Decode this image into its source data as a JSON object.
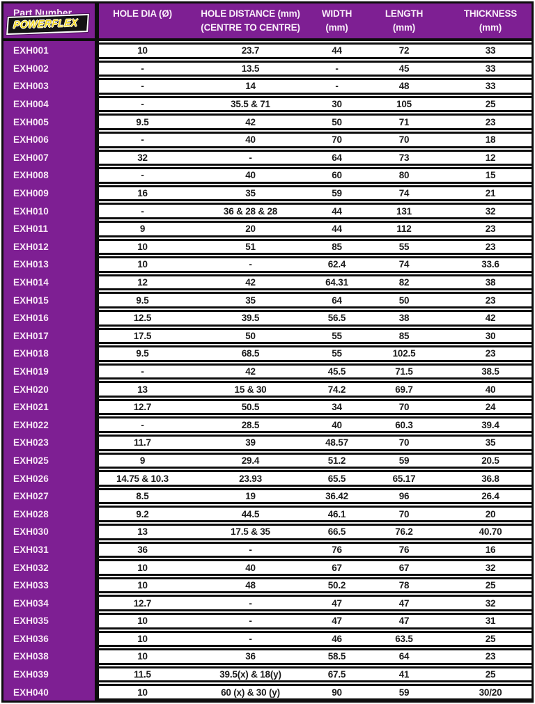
{
  "colors": {
    "accent_purple": "#7e1f93",
    "border_black": "#0d0d0d",
    "logo_yellow": "#f2d723",
    "header_text": "#f9eef9",
    "value_text": "#1b1b1b"
  },
  "header": {
    "part_number_label": "Part Number",
    "logo_text": "POWERFLEX",
    "columns": [
      {
        "line1": "HOLE DIA (Ø)",
        "line2": ""
      },
      {
        "line1": "HOLE DISTANCE (mm)",
        "line2": "(CENTRE TO CENTRE)"
      },
      {
        "line1": "WIDTH",
        "line2": "(mm)"
      },
      {
        "line1": "LENGTH",
        "line2": "(mm)"
      },
      {
        "line1": "THICKNESS",
        "line2": "(mm)"
      }
    ]
  },
  "rows": [
    {
      "part": "EXH001",
      "hole_dia": "10",
      "hole_distance": "23.7",
      "width": "44",
      "length": "72",
      "thickness": "33"
    },
    {
      "part": "EXH002",
      "hole_dia": "-",
      "hole_distance": "13.5",
      "width": "-",
      "length": "45",
      "thickness": "33"
    },
    {
      "part": "EXH003",
      "hole_dia": "-",
      "hole_distance": "14",
      "width": "-",
      "length": "48",
      "thickness": "33"
    },
    {
      "part": "EXH004",
      "hole_dia": "-",
      "hole_distance": "35.5 & 71",
      "width": "30",
      "length": "105",
      "thickness": "25"
    },
    {
      "part": "EXH005",
      "hole_dia": "9.5",
      "hole_distance": "42",
      "width": "50",
      "length": "71",
      "thickness": "23"
    },
    {
      "part": "EXH006",
      "hole_dia": "-",
      "hole_distance": "40",
      "width": "70",
      "length": "70",
      "thickness": "18"
    },
    {
      "part": "EXH007",
      "hole_dia": "32",
      "hole_distance": "-",
      "width": "64",
      "length": "73",
      "thickness": "12"
    },
    {
      "part": "EXH008",
      "hole_dia": "-",
      "hole_distance": "40",
      "width": "60",
      "length": "80",
      "thickness": "15"
    },
    {
      "part": "EXH009",
      "hole_dia": "16",
      "hole_distance": "35",
      "width": "59",
      "length": "74",
      "thickness": "21"
    },
    {
      "part": "EXH010",
      "hole_dia": "-",
      "hole_distance": "36 & 28 & 28",
      "width": "44",
      "length": "131",
      "thickness": "32"
    },
    {
      "part": "EXH011",
      "hole_dia": "9",
      "hole_distance": "20",
      "width": "44",
      "length": "112",
      "thickness": "23"
    },
    {
      "part": "EXH012",
      "hole_dia": "10",
      "hole_distance": "51",
      "width": "85",
      "length": "55",
      "thickness": "23"
    },
    {
      "part": "EXH013",
      "hole_dia": "10",
      "hole_distance": "-",
      "width": "62.4",
      "length": "74",
      "thickness": "33.6"
    },
    {
      "part": "EXH014",
      "hole_dia": "12",
      "hole_distance": "42",
      "width": "64.31",
      "length": "82",
      "thickness": "38"
    },
    {
      "part": "EXH015",
      "hole_dia": "9.5",
      "hole_distance": "35",
      "width": "64",
      "length": "50",
      "thickness": "23"
    },
    {
      "part": "EXH016",
      "hole_dia": "12.5",
      "hole_distance": "39.5",
      "width": "56.5",
      "length": "38",
      "thickness": "42"
    },
    {
      "part": "EXH017",
      "hole_dia": "17.5",
      "hole_distance": "50",
      "width": "55",
      "length": "85",
      "thickness": "30"
    },
    {
      "part": "EXH018",
      "hole_dia": "9.5",
      "hole_distance": "68.5",
      "width": "55",
      "length": "102.5",
      "thickness": "23"
    },
    {
      "part": "EXH019",
      "hole_dia": "-",
      "hole_distance": "42",
      "width": "45.5",
      "length": "71.5",
      "thickness": "38.5"
    },
    {
      "part": "EXH020",
      "hole_dia": "13",
      "hole_distance": "15 & 30",
      "width": "74.2",
      "length": "69.7",
      "thickness": "40"
    },
    {
      "part": "EXH021",
      "hole_dia": "12.7",
      "hole_distance": "50.5",
      "width": "34",
      "length": "70",
      "thickness": "24"
    },
    {
      "part": "EXH022",
      "hole_dia": "-",
      "hole_distance": "28.5",
      "width": "40",
      "length": "60.3",
      "thickness": "39.4"
    },
    {
      "part": "EXH023",
      "hole_dia": "11.7",
      "hole_distance": "39",
      "width": "48.57",
      "length": "70",
      "thickness": "35"
    },
    {
      "part": "EXH025",
      "hole_dia": "9",
      "hole_distance": "29.4",
      "width": "51.2",
      "length": "59",
      "thickness": "20.5"
    },
    {
      "part": "EXH026",
      "hole_dia": "14.75 & 10.3",
      "hole_distance": "23.93",
      "width": "65.5",
      "length": "65.17",
      "thickness": "36.8"
    },
    {
      "part": "EXH027",
      "hole_dia": "8.5",
      "hole_distance": "19",
      "width": "36.42",
      "length": "96",
      "thickness": "26.4"
    },
    {
      "part": "EXH028",
      "hole_dia": "9.2",
      "hole_distance": "44.5",
      "width": "46.1",
      "length": "70",
      "thickness": "20"
    },
    {
      "part": "EXH030",
      "hole_dia": "13",
      "hole_distance": "17.5 & 35",
      "width": "66.5",
      "length": "76.2",
      "thickness": "40.70"
    },
    {
      "part": "EXH031",
      "hole_dia": "36",
      "hole_distance": "-",
      "width": "76",
      "length": "76",
      "thickness": "16"
    },
    {
      "part": "EXH032",
      "hole_dia": "10",
      "hole_distance": "40",
      "width": "67",
      "length": "67",
      "thickness": "32"
    },
    {
      "part": "EXH033",
      "hole_dia": "10",
      "hole_distance": "48",
      "width": "50.2",
      "length": "78",
      "thickness": "25"
    },
    {
      "part": "EXH034",
      "hole_dia": "12.7",
      "hole_distance": "-",
      "width": "47",
      "length": "47",
      "thickness": "32"
    },
    {
      "part": "EXH035",
      "hole_dia": "10",
      "hole_distance": "-",
      "width": "47",
      "length": "47",
      "thickness": "31"
    },
    {
      "part": "EXH036",
      "hole_dia": "10",
      "hole_distance": "-",
      "width": "46",
      "length": "63.5",
      "thickness": "25"
    },
    {
      "part": "EXH038",
      "hole_dia": "10",
      "hole_distance": "36",
      "width": "58.5",
      "length": "64",
      "thickness": "23"
    },
    {
      "part": "EXH039",
      "hole_dia": "11.5",
      "hole_distance": "39.5(x) & 18(y)",
      "width": "67.5",
      "length": "41",
      "thickness": "25"
    },
    {
      "part": "EXH040",
      "hole_dia": "10",
      "hole_distance": "60 (x) & 30 (y)",
      "width": "90",
      "length": "59",
      "thickness": "30/20"
    }
  ]
}
